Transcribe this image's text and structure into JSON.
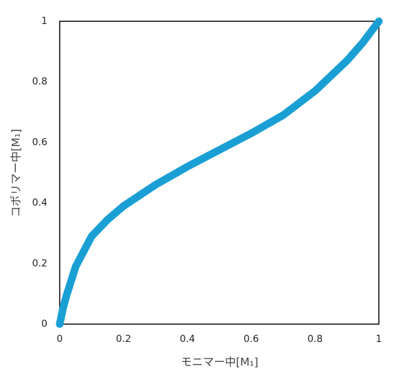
{
  "chart_data": {
    "type": "line",
    "xlabel": "モニマー中[M₁]",
    "ylabel": "コポリマー中[M₁]",
    "x": [
      0,
      0.01,
      0.02,
      0.05,
      0.1,
      0.15,
      0.2,
      0.3,
      0.4,
      0.5,
      0.6,
      0.7,
      0.8,
      0.9,
      0.95,
      1
    ],
    "series": [
      {
        "color": "#1a9fd4",
        "values": [
          0,
          0.05,
          0.09,
          0.19,
          0.29,
          0.345,
          0.39,
          0.46,
          0.52,
          0.575,
          0.63,
          0.69,
          0.77,
          0.87,
          0.93,
          1
        ]
      }
    ],
    "xlim": [
      0,
      1
    ],
    "ylim": [
      0,
      1
    ],
    "xticks": [
      0,
      0.2,
      0.4,
      0.6,
      0.8,
      1
    ],
    "yticks": [
      0,
      0.2,
      0.4,
      0.6,
      0.8,
      1
    ],
    "grid": false
  }
}
